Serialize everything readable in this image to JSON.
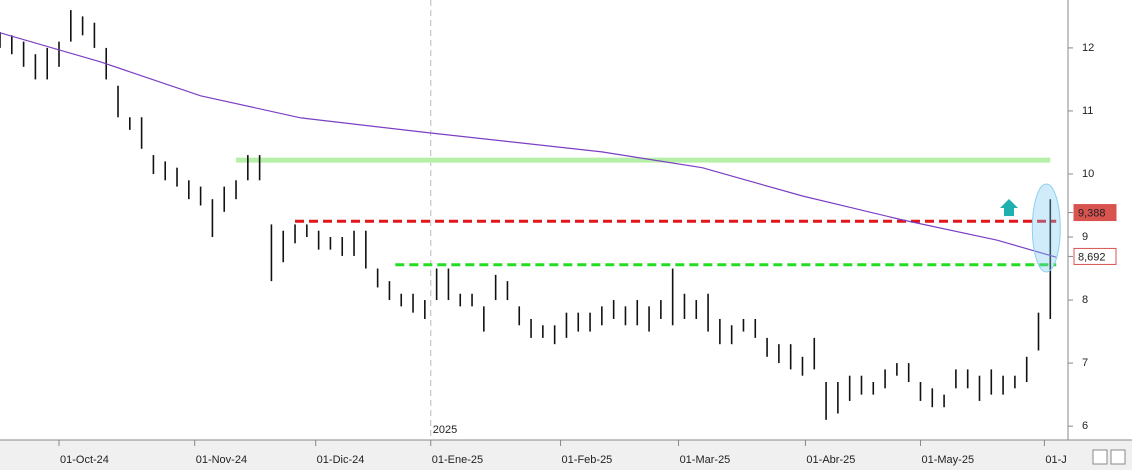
{
  "chart_data": {
    "type": "hilo",
    "x": [
      0,
      2,
      4,
      6,
      8,
      10,
      12,
      14,
      16,
      18,
      20,
      22,
      24,
      26,
      28,
      30,
      32,
      34,
      36,
      38,
      40,
      42,
      44,
      46,
      48,
      50,
      52,
      54,
      56,
      58,
      60,
      62,
      64,
      66,
      68,
      70,
      72,
      74,
      76,
      78,
      80,
      82,
      84,
      86,
      88,
      90,
      92,
      94,
      96,
      98,
      100,
      102,
      104,
      106,
      108,
      110,
      112,
      114,
      116,
      118,
      120,
      122,
      124,
      126,
      128,
      130,
      132,
      134,
      136,
      138,
      140,
      142,
      144,
      146,
      148,
      150,
      152,
      154,
      156,
      158,
      160,
      162,
      164,
      166,
      168,
      170,
      172,
      174,
      176,
      178
    ],
    "high": [
      12.25,
      12.2,
      12.1,
      11.9,
      12.0,
      12.1,
      12.6,
      12.5,
      12.4,
      12.0,
      11.4,
      10.9,
      10.9,
      10.3,
      10.2,
      10.1,
      9.9,
      9.8,
      9.6,
      9.8,
      9.9,
      10.3,
      10.3,
      9.2,
      9.1,
      9.2,
      9.2,
      9.1,
      9.0,
      9.0,
      9.1,
      9.1,
      8.5,
      8.3,
      8.1,
      8.1,
      8.0,
      8.5,
      8.5,
      8.1,
      8.1,
      7.9,
      8.4,
      8.3,
      7.9,
      7.7,
      7.6,
      7.6,
      7.8,
      7.8,
      7.8,
      7.9,
      8.0,
      7.9,
      8.0,
      7.9,
      8.0,
      8.5,
      8.1,
      8.0,
      8.1,
      7.7,
      7.6,
      7.7,
      7.7,
      7.4,
      7.3,
      7.3,
      7.1,
      7.4,
      6.7,
      6.7,
      6.8,
      6.8,
      6.7,
      6.9,
      7.0,
      7.0,
      6.7,
      6.6,
      6.5,
      6.9,
      6.9,
      6.8,
      6.9,
      6.8,
      6.8,
      7.1,
      7.8,
      9.6
    ],
    "low": [
      12.0,
      11.9,
      11.7,
      11.5,
      11.5,
      11.7,
      12.1,
      12.2,
      12.0,
      11.5,
      10.9,
      10.7,
      10.4,
      10.0,
      9.9,
      9.8,
      9.6,
      9.5,
      9.0,
      9.4,
      9.6,
      9.9,
      9.9,
      8.3,
      8.6,
      8.9,
      9.0,
      8.8,
      8.8,
      8.7,
      8.7,
      8.5,
      8.2,
      8.0,
      7.9,
      7.8,
      7.7,
      8.0,
      8.0,
      7.9,
      7.9,
      7.5,
      8.0,
      8.0,
      7.6,
      7.4,
      7.4,
      7.3,
      7.4,
      7.5,
      7.5,
      7.6,
      7.7,
      7.6,
      7.6,
      7.5,
      7.7,
      7.6,
      7.7,
      7.7,
      7.5,
      7.3,
      7.3,
      7.5,
      7.4,
      7.1,
      7.0,
      6.9,
      6.8,
      6.9,
      6.1,
      6.2,
      6.4,
      6.5,
      6.5,
      6.6,
      6.8,
      6.7,
      6.4,
      6.3,
      6.3,
      6.6,
      6.6,
      6.4,
      6.5,
      6.5,
      6.6,
      6.7,
      7.2,
      7.7
    ],
    "bar_color": "#111111",
    "moving_average": {
      "color": "#7b3fc4",
      "x": [
        0,
        17,
        34,
        51,
        73,
        102,
        119,
        136,
        153,
        169,
        179
      ],
      "values": [
        12.24,
        11.78,
        11.24,
        10.89,
        10.65,
        10.35,
        10.1,
        9.65,
        9.27,
        8.95,
        8.68
      ]
    },
    "levels": [
      {
        "value": 10.22,
        "x": [
          40,
          178
        ],
        "color": "#b6f0a8",
        "style": "solid"
      },
      {
        "value": 9.25,
        "x": [
          50,
          179
        ],
        "color": "#e0161b",
        "style": "dashed"
      },
      {
        "value": 8.56,
        "x": [
          67,
          179
        ],
        "color": "#22dd22",
        "style": "dashed"
      }
    ],
    "price_tags": [
      {
        "value": 9.388,
        "label": "9,388",
        "color": "#d9534f"
      },
      {
        "value": 8.692,
        "label": "8,692",
        "color": "#d9534f"
      }
    ],
    "year_marker": {
      "value": 73,
      "label": "2025"
    },
    "xlim": [
      0,
      181
    ],
    "ylim": [
      5.78,
      12.76
    ],
    "yticks": [
      6,
      7,
      8,
      9,
      10,
      11,
      12
    ],
    "xticks": [
      {
        "value": 10,
        "label": "01-Oct-24"
      },
      {
        "value": 33,
        "label": "01-Nov-24"
      },
      {
        "value": 53.5,
        "label": "01-Dic-24"
      },
      {
        "value": 73,
        "label": "01-Ene-25"
      },
      {
        "value": 95,
        "label": "01-Feb-25"
      },
      {
        "value": 115,
        "label": "01-Mar-25"
      },
      {
        "value": 136.5,
        "label": "01-Abr-25"
      },
      {
        "value": 156,
        "label": "01-May-25"
      },
      {
        "value": 177,
        "label": "01-J"
      }
    ]
  }
}
